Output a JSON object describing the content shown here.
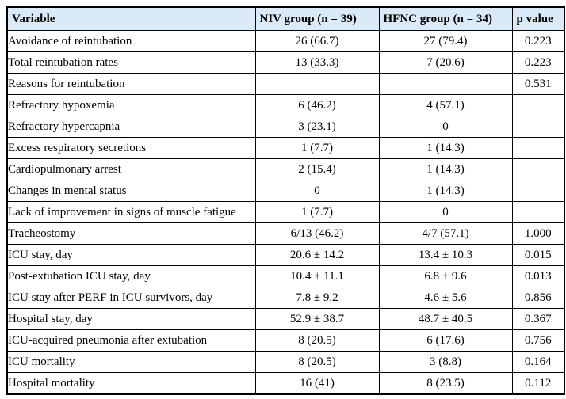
{
  "table": {
    "header_bg": "#daeaf8",
    "border_color": "#000000",
    "columns": [
      "Variable",
      "NIV group (n = 39)",
      "HFNC group (n = 34)",
      "p value"
    ],
    "rows": [
      {
        "variable": "Avoidance of reintubation",
        "niv": "26 (66.7)",
        "hfnc": "27 (79.4)",
        "p": "0.223"
      },
      {
        "variable": "Total reintubation rates",
        "niv": "13 (33.3)",
        "hfnc": "7 (20.6)",
        "p": "0.223"
      },
      {
        "variable": "Reasons for reintubation",
        "niv": "",
        "hfnc": "",
        "p": "0.531"
      },
      {
        "variable": "Refractory hypoxemia",
        "niv": "6 (46.2)",
        "hfnc": "4 (57.1)",
        "p": ""
      },
      {
        "variable": "Refractory hypercapnia",
        "niv": "3 (23.1)",
        "hfnc": "0",
        "p": ""
      },
      {
        "variable": "Excess respiratory secretions",
        "niv": "1 (7.7)",
        "hfnc": "1 (14.3)",
        "p": ""
      },
      {
        "variable": "Cardiopulmonary arrest",
        "niv": "2 (15.4)",
        "hfnc": "1 (14.3)",
        "p": ""
      },
      {
        "variable": "Changes in mental status",
        "niv": "0",
        "hfnc": "1 (14.3)",
        "p": ""
      },
      {
        "variable": "Lack of improvement in signs of muscle fatigue",
        "niv": "1 (7.7)",
        "hfnc": "0",
        "p": ""
      },
      {
        "variable": "Tracheostomy",
        "niv": "6/13 (46.2)",
        "hfnc": "4/7 (57.1)",
        "p": "1.000"
      },
      {
        "variable": "ICU stay, day",
        "niv": "20.6 ± 14.2",
        "hfnc": "13.4 ± 10.3",
        "p": "0.015"
      },
      {
        "variable": "Post-extubation ICU stay, day",
        "niv": "10.4 ± 11.1",
        "hfnc": "6.8 ± 9.6",
        "p": "0.013"
      },
      {
        "variable": "ICU stay after PERF in ICU survivors, day",
        "niv": "7.8 ± 9.2",
        "hfnc": "4.6 ± 5.6",
        "p": "0.856"
      },
      {
        "variable": "Hospital stay, day",
        "niv": "52.9 ± 38.7",
        "hfnc": "48.7 ± 40.5",
        "p": "0.367"
      },
      {
        "variable": "ICU-acquired pneumonia after extubation",
        "niv": "8 (20.5)",
        "hfnc": "6 (17.6)",
        "p": "0.756"
      },
      {
        "variable": "ICU mortality",
        "niv": "8 (20.5)",
        "hfnc": "3 (8.8)",
        "p": "0.164"
      },
      {
        "variable": "Hospital mortality",
        "niv": "16 (41)",
        "hfnc": "8 (23.5)",
        "p": "0.112"
      }
    ]
  },
  "chart_data": {
    "type": "table",
    "title": "",
    "columns": [
      "Variable",
      "NIV group (n = 39)",
      "HFNC group (n = 34)",
      "p value"
    ],
    "rows": [
      [
        "Avoidance of reintubation",
        "26 (66.7)",
        "27 (79.4)",
        "0.223"
      ],
      [
        "Total reintubation rates",
        "13 (33.3)",
        "7 (20.6)",
        "0.223"
      ],
      [
        "Reasons for reintubation",
        "",
        "",
        "0.531"
      ],
      [
        "Refractory hypoxemia",
        "6 (46.2)",
        "4 (57.1)",
        ""
      ],
      [
        "Refractory hypercapnia",
        "3 (23.1)",
        "0",
        ""
      ],
      [
        "Excess respiratory secretions",
        "1 (7.7)",
        "1 (14.3)",
        ""
      ],
      [
        "Cardiopulmonary arrest",
        "2 (15.4)",
        "1 (14.3)",
        ""
      ],
      [
        "Changes in mental status",
        "0",
        "1 (14.3)",
        ""
      ],
      [
        "Lack of improvement in signs of muscle fatigue",
        "1 (7.7)",
        "0",
        ""
      ],
      [
        "Tracheostomy",
        "6/13 (46.2)",
        "4/7 (57.1)",
        "1.000"
      ],
      [
        "ICU stay, day",
        "20.6 ± 14.2",
        "13.4 ± 10.3",
        "0.015"
      ],
      [
        "Post-extubation ICU stay, day",
        "10.4 ± 11.1",
        "6.8 ± 9.6",
        "0.013"
      ],
      [
        "ICU stay after PERF in ICU survivors, day",
        "7.8 ± 9.2",
        "4.6 ± 5.6",
        "0.856"
      ],
      [
        "Hospital stay, day",
        "52.9 ± 38.7",
        "48.7 ± 40.5",
        "0.367"
      ],
      [
        "ICU-acquired pneumonia after extubation",
        "8 (20.5)",
        "6 (17.6)",
        "0.756"
      ],
      [
        "ICU mortality",
        "8 (20.5)",
        "3 (8.8)",
        "0.164"
      ],
      [
        "Hospital mortality",
        "16 (41)",
        "8 (23.5)",
        "0.112"
      ]
    ]
  }
}
